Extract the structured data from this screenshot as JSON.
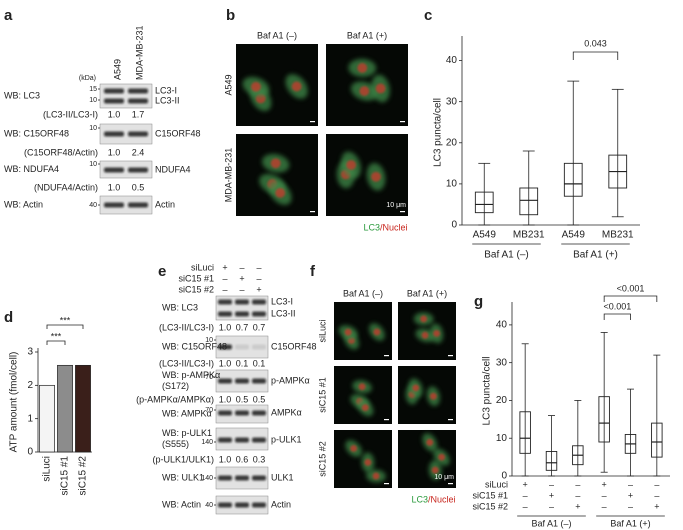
{
  "panel_labels": [
    "a",
    "b",
    "c",
    "d",
    "e",
    "f",
    "g"
  ],
  "panel_a": {
    "columns": [
      "A549",
      "MDA-MB-231"
    ],
    "kda": "(kDa)",
    "blots": [
      {
        "label": [
          "WB: LC3"
        ],
        "markers": [
          "15",
          "10"
        ],
        "bands": [
          "LC3-I",
          "LC3-II"
        ],
        "ratio_label": "(LC3-II/LC3-I)",
        "ratios": [
          "1.0",
          "1.7"
        ]
      },
      {
        "label": [
          "WB: C15ORF48"
        ],
        "markers": [
          "10"
        ],
        "bands": [
          "C15ORF48"
        ],
        "ratio_label": "(C15ORF48/Actin)",
        "ratios": [
          "1.0",
          "2.4"
        ]
      },
      {
        "label": [
          "WB: NDUFA4"
        ],
        "markers": [
          "10"
        ],
        "bands": [
          "NDUFA4"
        ],
        "ratio_label": "(NDUFA4/Actin)",
        "ratios": [
          "1.0",
          "0.5"
        ]
      },
      {
        "label": [
          "WB: Actin"
        ],
        "markers": [
          "40"
        ],
        "bands": [
          "Actin"
        ]
      }
    ]
  },
  "panel_b": {
    "columns": [
      "Baf A1 (–)",
      "Baf A1 (+)"
    ],
    "rows": [
      "A549",
      "MDA-MB-231"
    ],
    "scale": "10 μm",
    "legend": [
      "LC3",
      "/Nuclei"
    ]
  },
  "panel_e": {
    "conditions": [
      {
        "name": "siLuci",
        "marks": [
          "+",
          "–",
          "–"
        ]
      },
      {
        "name": "siC15 #1",
        "marks": [
          "–",
          "+",
          "–"
        ]
      },
      {
        "name": "siC15 #2",
        "marks": [
          "–",
          "–",
          "+"
        ]
      }
    ],
    "blots": [
      {
        "label": [
          "WB: LC3"
        ],
        "markers": [],
        "bands": [
          "LC3-I",
          "LC3-II"
        ],
        "ratio_label": "(LC3-II/LC3-I)",
        "ratios": [
          "1.0",
          "0.7",
          "0.7"
        ]
      },
      {
        "label": [
          "WB: C15ORF48"
        ],
        "markers": [
          "10"
        ],
        "bands": [
          "C15ORF48"
        ],
        "ratio_label": "(LC3-II/LC3-I)",
        "ratios": [
          "1.0",
          "0.1",
          "0.1"
        ]
      },
      {
        "label": [
          "WB: p-AMPKα",
          "(S172)"
        ],
        "markers": [
          "70"
        ],
        "bands": [
          "p-AMPKα"
        ],
        "ratio_label": "(p-AMPKα/AMPKα)",
        "ratios": [
          "1.0",
          "0.5",
          "0.5"
        ]
      },
      {
        "label": [
          "WB: AMPKα"
        ],
        "markers": [
          "70"
        ],
        "bands": [
          "AMPKα"
        ]
      },
      {
        "label": [
          "WB: p-ULK1",
          "(S555)"
        ],
        "markers": [
          "140"
        ],
        "bands": [
          "p-ULK1"
        ],
        "ratio_label": "(p-ULK1/ULK1)",
        "ratios": [
          "1.0",
          "0.6",
          "0.3"
        ]
      },
      {
        "label": [
          "WB: ULK1"
        ],
        "markers": [
          "140"
        ],
        "bands": [
          "ULK1"
        ]
      },
      {
        "label": [
          "WB: Actin"
        ],
        "markers": [
          "40"
        ],
        "bands": [
          "Actin"
        ]
      }
    ]
  },
  "panel_f": {
    "columns": [
      "Baf A1 (–)",
      "Baf A1 (+)"
    ],
    "rows": [
      "siLuci",
      "siC15 #1",
      "siC15 #2"
    ],
    "scale": "10 μm",
    "legend": [
      "LC3",
      "/Nuclei"
    ]
  },
  "chart_data": [
    {
      "type": "box",
      "ylabel": "LC3 puncta/cell",
      "categories": [
        "A549",
        "MB231",
        "A549",
        "MB231"
      ],
      "groups": [
        "Baf A1 (–)",
        "Baf A1 (+)"
      ],
      "annotations": [
        "0.043"
      ],
      "boxes": [
        {
          "whislo": 0,
          "q1": 3,
          "med": 5,
          "q3": 8,
          "whishi": 15
        },
        {
          "whislo": 0,
          "q1": 2.5,
          "med": 6,
          "q3": 9,
          "whishi": 18
        },
        {
          "whislo": 0,
          "q1": 7,
          "med": 10,
          "q3": 15,
          "whishi": 35
        },
        {
          "whislo": 2,
          "q1": 9,
          "med": 13,
          "q3": 17,
          "whishi": 33
        }
      ],
      "ylim": [
        0,
        45
      ],
      "yticks": [
        0,
        10,
        20,
        30,
        40
      ]
    },
    {
      "type": "bar",
      "ylabel": "ATP amount (fmol/cell)",
      "categories": [
        "siLuci",
        "siC15 #1",
        "siC15 #2"
      ],
      "values": [
        2.0,
        2.6,
        2.6
      ],
      "colors": [
        "#f4f4f4",
        "#8c8c8c",
        "#3a1f1a"
      ],
      "annotations": [
        "***",
        "***"
      ],
      "ylim": [
        0,
        3
      ],
      "yticks": [
        0,
        1,
        2,
        3
      ]
    },
    {
      "type": "box",
      "ylabel": "LC3 puncta/cell",
      "categories": [
        null,
        null,
        null,
        null,
        null,
        null
      ],
      "conditions": [
        {
          "name": "siLuci",
          "marks": [
            "+",
            "–",
            "–",
            "+",
            "–",
            "–"
          ]
        },
        {
          "name": "siC15 #1",
          "marks": [
            "–",
            "+",
            "–",
            "–",
            "+",
            "–"
          ]
        },
        {
          "name": "siC15 #2",
          "marks": [
            "–",
            "–",
            "+",
            "–",
            "–",
            "+"
          ]
        }
      ],
      "groups": [
        "Baf A1 (–)",
        "Baf A1 (+)"
      ],
      "annotations": [
        "<0.001",
        "<0.001"
      ],
      "boxes": [
        {
          "whislo": 0,
          "q1": 6,
          "med": 10,
          "q3": 17,
          "whishi": 35
        },
        {
          "whislo": 0,
          "q1": 1.5,
          "med": 3.5,
          "q3": 6.5,
          "whishi": 16
        },
        {
          "whislo": 0,
          "q1": 3,
          "med": 5.5,
          "q3": 8,
          "whishi": 20
        },
        {
          "whislo": 1,
          "q1": 9,
          "med": 14,
          "q3": 21,
          "whishi": 38
        },
        {
          "whislo": 0,
          "q1": 6,
          "med": 8.5,
          "q3": 11,
          "whishi": 23
        },
        {
          "whislo": 0,
          "q1": 5,
          "med": 9,
          "q3": 14,
          "whishi": 32
        }
      ],
      "ylim": [
        0,
        45
      ],
      "yticks": [
        0,
        10,
        20,
        30,
        40
      ]
    }
  ]
}
